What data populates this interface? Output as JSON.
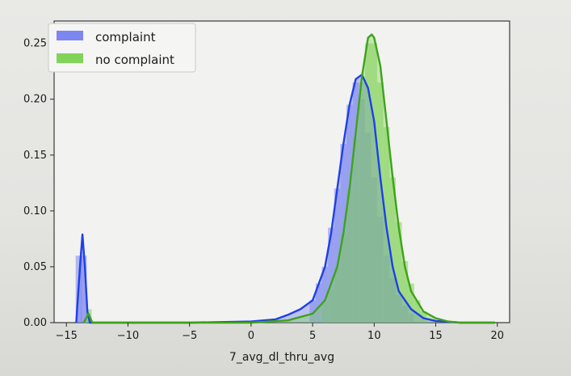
{
  "chart_data": {
    "type": "area",
    "xlabel": "7_avg_dl_thru_avg",
    "ylabel": "",
    "xlim": [
      -16,
      21
    ],
    "ylim": [
      0,
      0.27
    ],
    "x_ticks": [
      -15,
      -10,
      -5,
      0,
      5,
      10,
      15,
      20
    ],
    "x_tick_labels": [
      "−15",
      "−10",
      "−5",
      "0",
      "5",
      "10",
      "15",
      "20"
    ],
    "y_ticks": [
      0.0,
      0.05,
      0.1,
      0.15,
      0.2,
      0.25
    ],
    "y_tick_labels": [
      "0.00",
      "0.05",
      "0.10",
      "0.15",
      "0.20",
      "0.25"
    ],
    "legend_position": "top-left",
    "grid": false,
    "series": [
      {
        "name": "complaint",
        "color": "#1f3fe8",
        "fill": "#7b86f0",
        "kde": [
          [
            -14.2,
            0.0
          ],
          [
            -13.9,
            0.05
          ],
          [
            -13.7,
            0.079
          ],
          [
            -13.5,
            0.05
          ],
          [
            -13.3,
            0.01
          ],
          [
            -13.1,
            0.0
          ],
          [
            -10,
            0.0
          ],
          [
            -5,
            0.0
          ],
          [
            0,
            0.001
          ],
          [
            2,
            0.003
          ],
          [
            3,
            0.007
          ],
          [
            4,
            0.012
          ],
          [
            5,
            0.02
          ],
          [
            6,
            0.05
          ],
          [
            6.5,
            0.08
          ],
          [
            7,
            0.12
          ],
          [
            7.5,
            0.16
          ],
          [
            8,
            0.195
          ],
          [
            8.5,
            0.218
          ],
          [
            9.0,
            0.222
          ],
          [
            9.5,
            0.21
          ],
          [
            10,
            0.18
          ],
          [
            10.5,
            0.13
          ],
          [
            11,
            0.085
          ],
          [
            11.5,
            0.05
          ],
          [
            12,
            0.028
          ],
          [
            13,
            0.012
          ],
          [
            14,
            0.004
          ],
          [
            15,
            0.0015
          ],
          [
            17,
            0.0
          ],
          [
            19.8,
            0.0
          ]
        ],
        "bins": [
          [
            -14.0,
            0.06
          ],
          [
            -13.6,
            0.06
          ],
          [
            5.0,
            0.02
          ],
          [
            5.5,
            0.035
          ],
          [
            6.0,
            0.05
          ],
          [
            6.5,
            0.085
          ],
          [
            7.0,
            0.12
          ],
          [
            7.5,
            0.16
          ],
          [
            8.0,
            0.195
          ],
          [
            8.5,
            0.215
          ],
          [
            9.0,
            0.2
          ],
          [
            9.5,
            0.17
          ],
          [
            10.0,
            0.13
          ],
          [
            10.5,
            0.095
          ],
          [
            11.0,
            0.06
          ],
          [
            11.5,
            0.04
          ],
          [
            12.0,
            0.025
          ],
          [
            12.5,
            0.015
          ],
          [
            13.0,
            0.008
          ]
        ]
      },
      {
        "name": "no complaint",
        "color": "#3ea31a",
        "fill": "#82d35a",
        "kde": [
          [
            -13.6,
            0.0
          ],
          [
            -13.2,
            0.008
          ],
          [
            -12.9,
            0.0
          ],
          [
            -10,
            0.0
          ],
          [
            -5,
            0.0
          ],
          [
            0,
            0.0
          ],
          [
            3,
            0.002
          ],
          [
            5,
            0.008
          ],
          [
            6,
            0.02
          ],
          [
            7,
            0.05
          ],
          [
            7.5,
            0.08
          ],
          [
            8,
            0.12
          ],
          [
            8.5,
            0.17
          ],
          [
            9,
            0.22
          ],
          [
            9.5,
            0.255
          ],
          [
            9.8,
            0.258
          ],
          [
            10,
            0.255
          ],
          [
            10.5,
            0.23
          ],
          [
            11,
            0.18
          ],
          [
            11.5,
            0.13
          ],
          [
            12,
            0.085
          ],
          [
            12.5,
            0.05
          ],
          [
            13,
            0.028
          ],
          [
            14,
            0.01
          ],
          [
            15,
            0.004
          ],
          [
            16,
            0.001
          ],
          [
            17,
            0.0
          ],
          [
            19.8,
            0.0
          ]
        ],
        "bins": [
          [
            -13.2,
            0.012
          ],
          [
            6.0,
            0.018
          ],
          [
            6.5,
            0.03
          ],
          [
            7.0,
            0.05
          ],
          [
            7.5,
            0.08
          ],
          [
            8.0,
            0.12
          ],
          [
            8.5,
            0.165
          ],
          [
            9.0,
            0.215
          ],
          [
            9.5,
            0.25
          ],
          [
            10.0,
            0.25
          ],
          [
            10.5,
            0.215
          ],
          [
            11.0,
            0.175
          ],
          [
            11.5,
            0.13
          ],
          [
            12.0,
            0.09
          ],
          [
            12.5,
            0.055
          ],
          [
            13.0,
            0.035
          ],
          [
            13.5,
            0.02
          ],
          [
            14.0,
            0.01
          ]
        ]
      }
    ]
  }
}
